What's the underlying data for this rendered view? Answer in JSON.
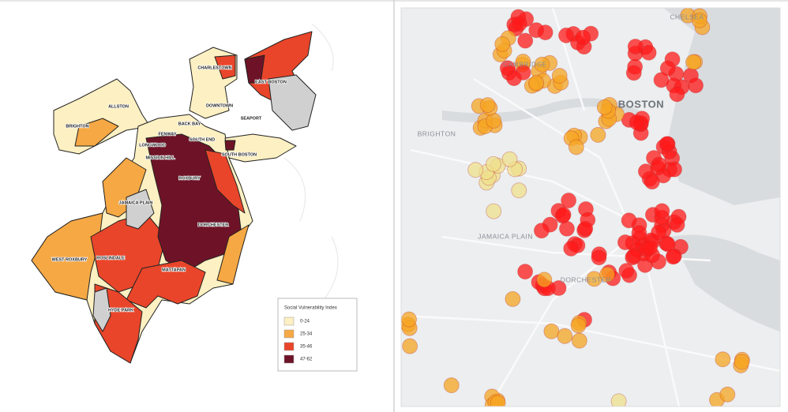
{
  "left_map": {
    "labels": [
      "ALLSTON",
      "BRIGHTON",
      "CHARLESTOWN",
      "EAST BOSTON",
      "DOWNTOWN",
      "BACK BAY",
      "SEAPORT",
      "FENWAY",
      "SOUTH END",
      "LONGWOOD",
      "MISSION HILL",
      "SOUTH BOSTON",
      "ROXBURY",
      "JAMAICA PLAIN",
      "DORCHESTER",
      "ROSLINDALE",
      "WEST ROXBURY",
      "MATTAPAN",
      "HYDE PARK"
    ],
    "legend": {
      "title": "Social Vulnerability Index",
      "items": [
        {
          "label": "0-24",
          "color": "#fdf0c2"
        },
        {
          "label": "25-34",
          "color": "#f5a843"
        },
        {
          "label": "35-46",
          "color": "#e9452a"
        },
        {
          "label": "47-62",
          "color": "#6e1327"
        }
      ]
    }
  },
  "right_map": {
    "labels": [
      "CHELSEA",
      "CAMBRIDGE",
      "BOSTON",
      "BRIGHTON",
      "JAMAICA PLAIN",
      "DORCHESTER"
    ]
  }
}
